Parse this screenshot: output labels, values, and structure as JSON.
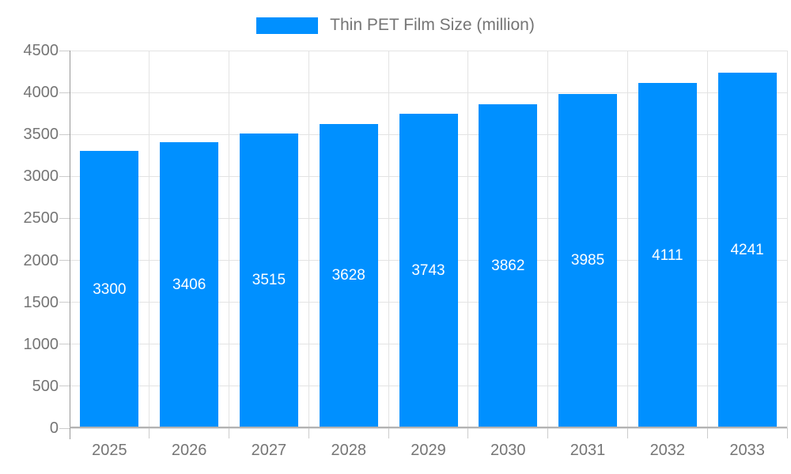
{
  "legend": {
    "label": "Thin PET Film Size (million)",
    "swatch_color": "#0090FF"
  },
  "chart_data": {
    "type": "bar",
    "title": "Thin PET Film Size (million)",
    "series_name": "Thin PET Film Size (million)",
    "categories": [
      "2025",
      "2026",
      "2027",
      "2028",
      "2029",
      "2030",
      "2031",
      "2032",
      "2033"
    ],
    "values": [
      3300,
      3406,
      3515,
      3628,
      3743,
      3862,
      3985,
      4111,
      4241
    ],
    "value_labels": [
      "3300",
      "3406",
      "3515",
      "3628",
      "3743",
      "3862",
      "3985",
      "4111",
      "4241"
    ],
    "xlabel": "",
    "ylabel": "",
    "ylim": [
      0,
      4500
    ],
    "yticks": [
      0,
      500,
      1000,
      1500,
      2000,
      2500,
      3000,
      3500,
      4000,
      4500
    ],
    "grid": true,
    "legend_position": "top",
    "bar_color": "#0090FF",
    "value_label_color": "#FFFFFF",
    "axis_text_color": "#757575",
    "gridline_color": "#E3E3E3"
  }
}
